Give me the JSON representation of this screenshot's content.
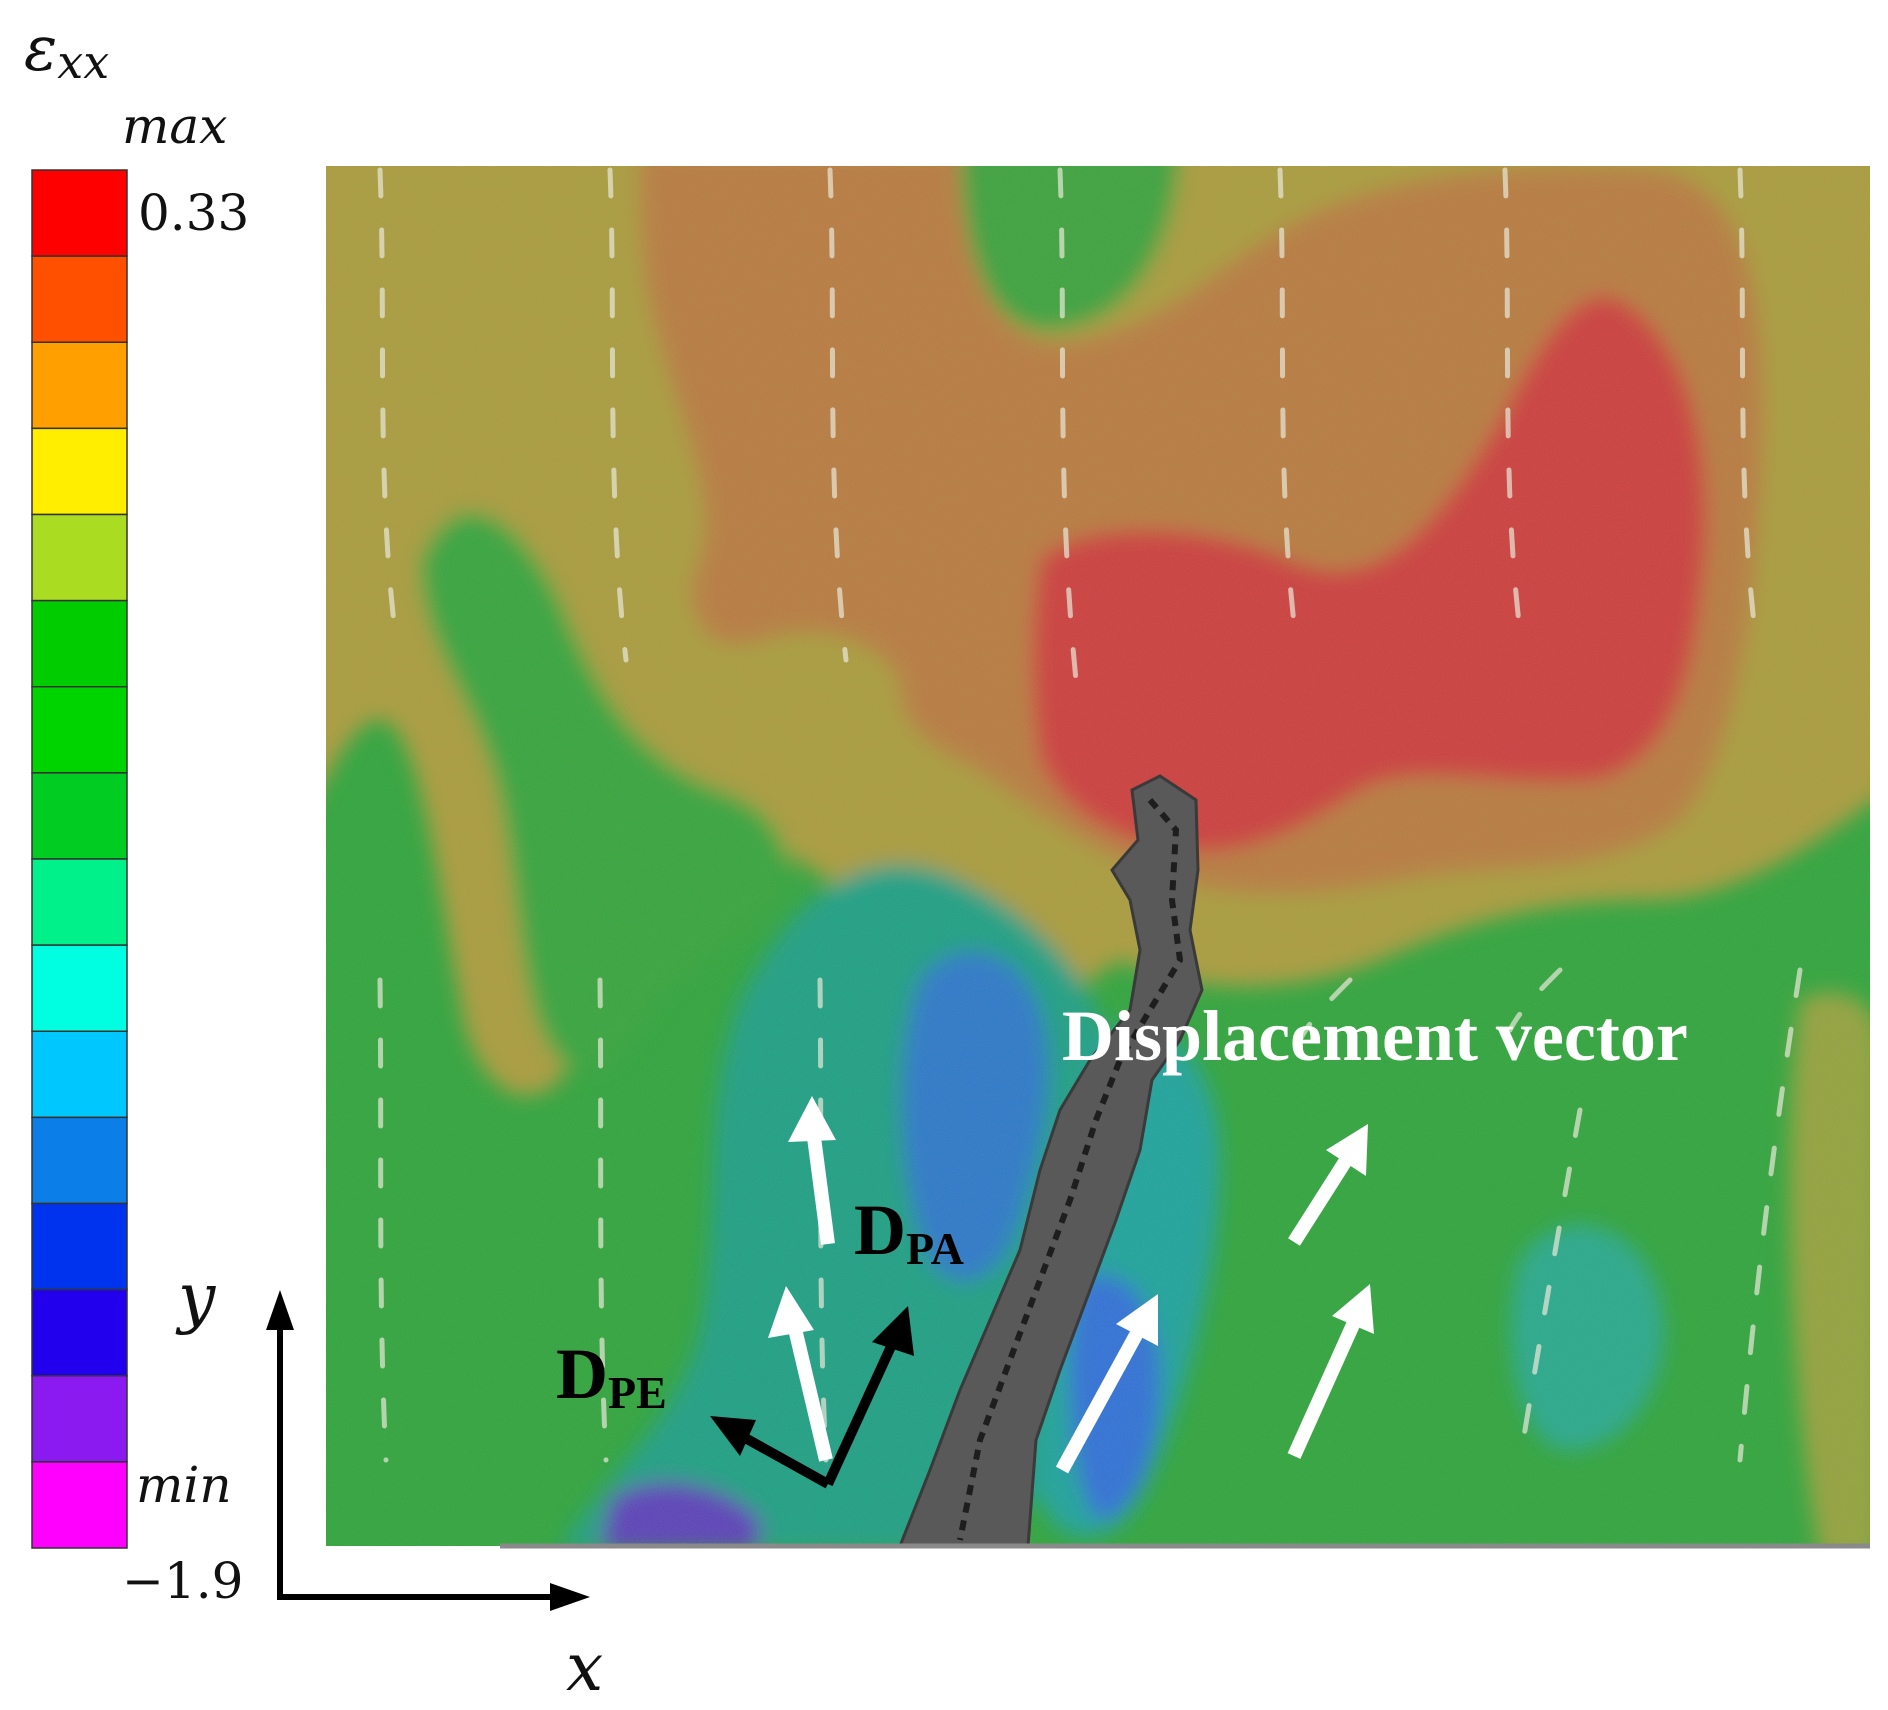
{
  "colorbar": {
    "title": "εxx",
    "title_main": "ε",
    "title_sub": "xx",
    "max_label": "max",
    "max_value": "0.33",
    "min_label": "min",
    "min_value": "−1.9",
    "range": [
      -1.9,
      0.33
    ],
    "colors": [
      "#ff0000",
      "#ff5000",
      "#ff9f00",
      "#ffee00",
      "#aadd22",
      "#00cc00",
      "#00d400",
      "#00cc22",
      "#00f08a",
      "#00ffe0",
      "#00c8ff",
      "#0c7ee8",
      "#0033ee",
      "#2200ee",
      "#8a1aef",
      "#ff00ff"
    ]
  },
  "axes": {
    "x_label": "x",
    "y_label": "y"
  },
  "annotations": {
    "displacement_label": "Displacement vector",
    "dpa_main": "D",
    "dpa_sub": "PA",
    "dpe_main": "D",
    "dpe_sub": "PE"
  },
  "colors": {
    "red_region": "#c8403a",
    "orange_region": "#b87a3c",
    "olive_region": "#a79a3a",
    "green_region": "#2ea43a",
    "teal_region": "#1f9f78",
    "blue_region": "#2a74c8",
    "crack": "#555555"
  }
}
